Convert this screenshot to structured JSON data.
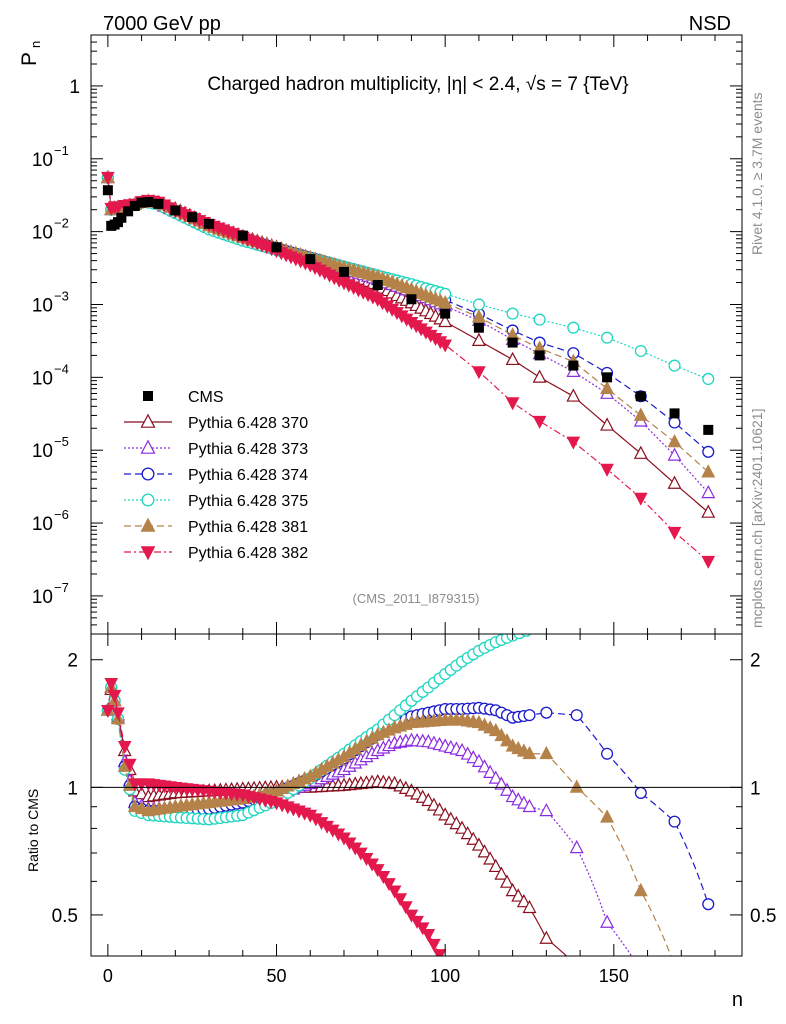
{
  "chart_data": {
    "type": "scatter",
    "header_left": "7000 GeV pp",
    "header_right": "NSD",
    "title": "Charged hadron multiplicity, |η| < 2.4, √s = 7 {TeV}",
    "analysis_tag": "(CMS_2011_I879315)",
    "side_label_top": "Rivet 4.1.0, ≥ 3.7M events",
    "side_label_bottom": "mcplots.cern.ch [arXiv:2401.10621]",
    "xlabel": "n",
    "ylabel_top": "P",
    "ylabel_top_sub": "n",
    "ylabel_bottom": "Ratio to CMS",
    "xlim": [
      -5,
      188
    ],
    "ylim_top": [
      3e-08,
      5
    ],
    "ylim_bottom": [
      0.4,
      2.3
    ],
    "x_ticks": [
      0,
      50,
      100,
      150
    ],
    "x_tick_labels": [
      "0",
      "50",
      "100",
      "150"
    ],
    "y_ticks_top": [
      1,
      0.1,
      0.01,
      0.001,
      0.0001,
      1e-05,
      1e-06,
      1e-07
    ],
    "y_tick_labels_top": [
      {
        "base": "1",
        "exp": ""
      },
      {
        "base": "10",
        "exp": "−1"
      },
      {
        "base": "10",
        "exp": "−2"
      },
      {
        "base": "10",
        "exp": "−3"
      },
      {
        "base": "10",
        "exp": "−4"
      },
      {
        "base": "10",
        "exp": "−5"
      },
      {
        "base": "10",
        "exp": "−6"
      },
      {
        "base": "10",
        "exp": "−7"
      }
    ],
    "y_ticks_bottom": [
      2,
      1,
      0.5
    ],
    "y_tick_labels_bottom": [
      "2",
      "1",
      "0.5"
    ],
    "legend_position": "lower-left",
    "reference": {
      "name": "CMS",
      "color": "#000000",
      "x": [
        0,
        1,
        2,
        3,
        4,
        6,
        8,
        10,
        12,
        15,
        20,
        25,
        30,
        40,
        50,
        60,
        70,
        80,
        90,
        100,
        110,
        120,
        128,
        138,
        148,
        158,
        168,
        178
      ],
      "y": [
        0.037,
        0.012,
        0.0125,
        0.0135,
        0.0155,
        0.019,
        0.0225,
        0.025,
        0.0255,
        0.024,
        0.0195,
        0.0158,
        0.0128,
        0.0088,
        0.0061,
        0.0042,
        0.0028,
        0.00185,
        0.00118,
        0.00075,
        0.00048,
        0.0003,
        0.0002,
        0.000145,
        0.0001,
        5.5e-05,
        3.2e-05,
        1.9e-05
      ]
    },
    "series": [
      {
        "name": "Pythia 6.428 370",
        "color": "#8b0f1e",
        "marker": "triangle-open",
        "dash": "",
        "ratio_x": [
          0,
          1,
          2,
          3,
          5,
          8,
          12,
          20,
          30,
          40,
          50,
          60,
          70,
          80,
          85,
          90,
          95,
          100,
          105,
          110,
          115,
          120,
          125,
          130,
          139,
          148
        ],
        "ratio_y": [
          1.52,
          1.7,
          1.6,
          1.48,
          1.22,
          0.98,
          0.95,
          0.97,
          0.98,
          0.99,
          1.0,
          1.0,
          1.01,
          1.03,
          1.02,
          0.98,
          0.93,
          0.86,
          0.8,
          0.73,
          0.65,
          0.57,
          0.52,
          0.44,
          0.38,
          0.34
        ],
        "main_x": [
          0,
          1,
          2,
          3,
          5,
          8,
          10,
          12,
          15,
          20,
          30,
          40,
          50,
          60,
          70,
          80,
          90,
          100,
          110,
          120,
          128,
          138,
          148,
          158,
          168,
          178
        ],
        "main_y": [
          0.055,
          0.02,
          0.021,
          0.0215,
          0.022,
          0.0235,
          0.025,
          0.026,
          0.025,
          0.0205,
          0.0125,
          0.0085,
          0.0061,
          0.0042,
          0.0029,
          0.0018,
          0.00105,
          0.00058,
          0.00032,
          0.000175,
          0.0001,
          5.5e-05,
          2.2e-05,
          9e-06,
          3.5e-06,
          1.4e-06
        ]
      },
      {
        "name": "Pythia 6.428 373",
        "color": "#8b2be2",
        "marker": "triangle-open",
        "dash": "2,2",
        "ratio_x": [
          0,
          1,
          2,
          3,
          5,
          8,
          12,
          20,
          30,
          40,
          50,
          60,
          70,
          80,
          85,
          90,
          95,
          100,
          105,
          110,
          115,
          120,
          125,
          130,
          139,
          148,
          158
        ],
        "ratio_y": [
          1.52,
          1.72,
          1.6,
          1.46,
          1.15,
          0.92,
          0.89,
          0.89,
          0.9,
          0.92,
          0.96,
          1.02,
          1.1,
          1.22,
          1.27,
          1.29,
          1.28,
          1.25,
          1.22,
          1.15,
          1.05,
          0.95,
          0.9,
          0.88,
          0.72,
          0.48,
          0.37
        ],
        "main_x": [
          0,
          1,
          2,
          3,
          5,
          8,
          10,
          12,
          15,
          20,
          30,
          40,
          50,
          60,
          70,
          80,
          90,
          100,
          110,
          120,
          128,
          138,
          148,
          158,
          168,
          178
        ],
        "main_y": [
          0.055,
          0.02,
          0.021,
          0.0215,
          0.022,
          0.0235,
          0.025,
          0.026,
          0.024,
          0.019,
          0.0115,
          0.0082,
          0.0058,
          0.0043,
          0.0031,
          0.0022,
          0.0015,
          0.00095,
          0.0006,
          0.00033,
          0.00021,
          0.00012,
          6e-05,
          2.5e-05,
          8.5e-06,
          2.6e-06
        ]
      },
      {
        "name": "Pythia 6.428 374",
        "color": "#1a1acd",
        "marker": "circle-open",
        "dash": "7,4",
        "ratio_x": [
          0,
          1,
          2,
          3,
          5,
          8,
          12,
          20,
          30,
          40,
          50,
          60,
          70,
          80,
          85,
          90,
          95,
          100,
          105,
          110,
          115,
          120,
          125,
          130,
          139,
          148,
          158,
          168,
          178
        ],
        "ratio_y": [
          1.52,
          1.72,
          1.6,
          1.45,
          1.12,
          0.9,
          0.88,
          0.88,
          0.89,
          0.92,
          0.97,
          1.05,
          1.17,
          1.33,
          1.4,
          1.47,
          1.5,
          1.53,
          1.53,
          1.54,
          1.52,
          1.46,
          1.48,
          1.5,
          1.48,
          1.2,
          0.97,
          0.83,
          0.53
        ],
        "main_x": [
          0,
          1,
          2,
          3,
          5,
          8,
          10,
          12,
          15,
          20,
          30,
          40,
          50,
          60,
          70,
          80,
          90,
          100,
          110,
          120,
          128,
          138,
          148,
          158,
          168,
          178
        ],
        "main_y": [
          0.055,
          0.02,
          0.021,
          0.0215,
          0.022,
          0.0235,
          0.025,
          0.026,
          0.024,
          0.019,
          0.0113,
          0.0081,
          0.0059,
          0.0044,
          0.0033,
          0.0025,
          0.0017,
          0.00115,
          0.00074,
          0.00044,
          0.0003,
          0.000215,
          0.000115,
          5.5e-05,
          2.4e-05,
          9.5e-06
        ]
      },
      {
        "name": "Pythia 6.428 375",
        "color": "#1fd6c0",
        "marker": "circle-open",
        "dash": "2,2",
        "ratio_x": [
          0,
          1,
          2,
          3,
          5,
          8,
          12,
          20,
          30,
          40,
          50,
          60,
          70,
          80,
          85,
          90,
          95,
          100,
          105,
          110,
          115,
          120,
          124
        ],
        "ratio_y": [
          1.52,
          1.72,
          1.6,
          1.45,
          1.1,
          0.88,
          0.86,
          0.85,
          0.84,
          0.86,
          0.93,
          1.05,
          1.2,
          1.37,
          1.48,
          1.6,
          1.72,
          1.85,
          1.98,
          2.1,
          2.2,
          2.28,
          2.34
        ],
        "main_x": [
          0,
          1,
          2,
          3,
          5,
          8,
          10,
          12,
          15,
          20,
          30,
          40,
          50,
          60,
          70,
          80,
          90,
          100,
          110,
          120,
          128,
          138,
          148,
          158,
          168,
          178
        ],
        "main_y": [
          0.055,
          0.02,
          0.021,
          0.0215,
          0.022,
          0.0235,
          0.025,
          0.025,
          0.0235,
          0.018,
          0.0107,
          0.0075,
          0.0056,
          0.0043,
          0.0033,
          0.0025,
          0.0019,
          0.0014,
          0.001,
          0.00075,
          0.00062,
          0.00048,
          0.00035,
          0.00023,
          0.000145,
          9.5e-05
        ]
      },
      {
        "name": "Pythia 6.428 381",
        "color": "#b5834a",
        "marker": "triangle-filled",
        "dash": "7,4",
        "ratio_x": [
          0,
          1,
          2,
          3,
          5,
          8,
          12,
          20,
          30,
          40,
          50,
          60,
          70,
          80,
          85,
          90,
          95,
          100,
          105,
          110,
          115,
          120,
          125,
          130,
          139,
          148,
          158,
          168
        ],
        "ratio_y": [
          1.52,
          1.72,
          1.6,
          1.45,
          1.12,
          0.9,
          0.88,
          0.9,
          0.92,
          0.94,
          0.98,
          1.06,
          1.18,
          1.33,
          1.38,
          1.42,
          1.43,
          1.44,
          1.44,
          1.42,
          1.36,
          1.25,
          1.2,
          1.2,
          1.0,
          0.85,
          0.57,
          0.38
        ],
        "main_x": [
          0,
          1,
          2,
          3,
          5,
          8,
          10,
          12,
          15,
          20,
          30,
          40,
          50,
          60,
          70,
          80,
          90,
          100,
          110,
          120,
          128,
          138,
          148,
          158,
          168,
          178
        ],
        "main_y": [
          0.055,
          0.02,
          0.021,
          0.0215,
          0.022,
          0.0235,
          0.025,
          0.026,
          0.025,
          0.02,
          0.012,
          0.0083,
          0.006,
          0.0044,
          0.0032,
          0.0024,
          0.0016,
          0.00105,
          0.00067,
          0.00038,
          0.00025,
          0.000165,
          7e-05,
          3e-05,
          1.3e-05,
          5e-06
        ]
      },
      {
        "name": "Pythia 6.428 382",
        "color": "#e3184c",
        "marker": "triangle-down-filled",
        "dash": "7,3,2,3",
        "ratio_x": [
          0,
          1,
          2,
          3,
          5,
          8,
          12,
          20,
          30,
          40,
          50,
          60,
          65,
          70,
          75,
          80,
          85,
          90,
          95,
          100
        ],
        "ratio_y": [
          1.52,
          1.76,
          1.65,
          1.5,
          1.25,
          1.02,
          1.02,
          1.0,
          0.98,
          0.96,
          0.92,
          0.86,
          0.81,
          0.76,
          0.7,
          0.64,
          0.57,
          0.5,
          0.45,
          0.38
        ],
        "main_x": [
          0,
          1,
          2,
          3,
          5,
          8,
          10,
          12,
          15,
          20,
          30,
          40,
          50,
          60,
          70,
          80,
          90,
          100,
          110,
          120,
          128,
          138,
          148,
          158,
          168,
          178
        ],
        "main_y": [
          0.056,
          0.021,
          0.022,
          0.022,
          0.023,
          0.024,
          0.026,
          0.027,
          0.0255,
          0.0195,
          0.0126,
          0.0084,
          0.0055,
          0.0035,
          0.002,
          0.00118,
          0.00057,
          0.00028,
          0.00012,
          4.5e-05,
          2.5e-05,
          1.3e-05,
          5.5e-06,
          2.2e-06,
          7.5e-07,
          3e-07
        ]
      }
    ]
  }
}
